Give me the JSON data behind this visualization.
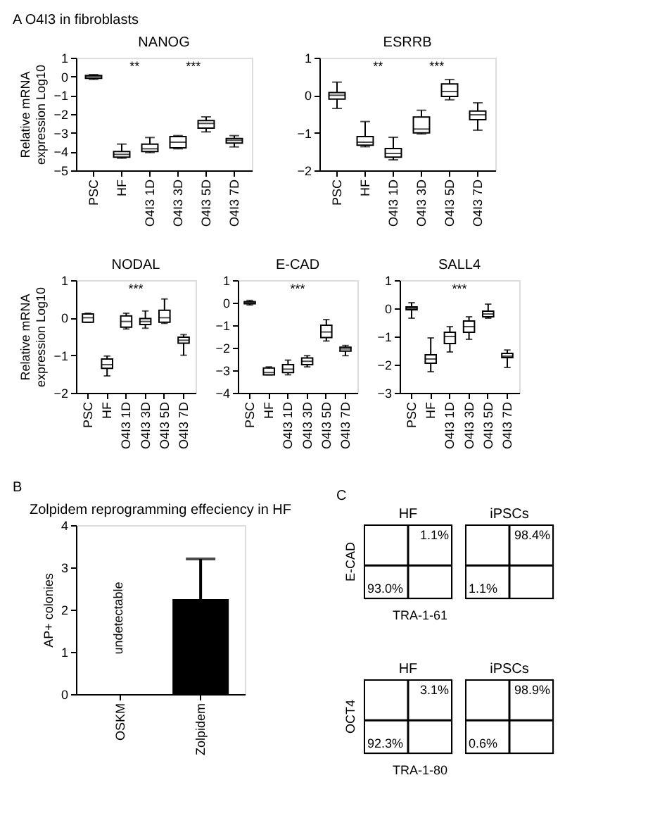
{
  "chart_data": [
    {
      "type": "box",
      "title": "NANOG",
      "ylabel": "Relative mRNA expression Log10",
      "categories": [
        "PSC",
        "HF",
        "O4I3 1D",
        "O4I3 3D",
        "O4I3 5D",
        "O4I3 7D"
      ],
      "ylim": [
        -5,
        1
      ],
      "yticks": [
        -5,
        -4,
        -3,
        -2,
        -1,
        0,
        1
      ],
      "boxes": [
        {
          "low": -0.15,
          "q1": -0.1,
          "median": 0,
          "q3": 0.05,
          "high": 0.1
        },
        {
          "low": -4.35,
          "q1": -4.3,
          "median": -4.15,
          "q3": -4.0,
          "high": -3.6
        },
        {
          "low": -4.05,
          "q1": -4.0,
          "median": -3.85,
          "q3": -3.6,
          "high": -3.25
        },
        {
          "low": -3.85,
          "q1": -3.8,
          "median": -3.5,
          "q3": -3.2,
          "high": -3.15
        },
        {
          "low": -2.95,
          "q1": -2.75,
          "median": -2.5,
          "q3": -2.35,
          "high": -2.15
        },
        {
          "low": -3.75,
          "q1": -3.55,
          "median": -3.4,
          "q3": -3.3,
          "high": -3.15
        }
      ],
      "annotations": [
        "A  O4I3 in fibroblasts",
        "**",
        "***"
      ]
    },
    {
      "type": "box",
      "title": "ESRRB",
      "categories": [
        "PSC",
        "HF",
        "O4I3 1D",
        "O4I3 3D",
        "O4I3 5D",
        "O4I3 7D"
      ],
      "ylim": [
        -2,
        1
      ],
      "yticks": [
        -2,
        -1,
        0,
        1
      ],
      "boxes": [
        {
          "low": -0.35,
          "q1": -0.1,
          "median": 0,
          "q3": 0.07,
          "high": 0.35
        },
        {
          "low": -1.37,
          "q1": -1.33,
          "median": -1.25,
          "q3": -1.1,
          "high": -0.7
        },
        {
          "low": -1.72,
          "q1": -1.65,
          "median": -1.55,
          "q3": -1.42,
          "high": -1.12
        },
        {
          "low": -1.03,
          "q1": -1.0,
          "median": -0.9,
          "q3": -0.58,
          "high": -0.4
        },
        {
          "low": -0.12,
          "q1": -0.03,
          "median": 0.1,
          "q3": 0.3,
          "high": 0.42
        },
        {
          "low": -0.93,
          "q1": -0.65,
          "median": -0.52,
          "q3": -0.42,
          "high": -0.2
        }
      ],
      "annotations": [
        "**",
        "***"
      ]
    },
    {
      "type": "box",
      "title": "NODAL",
      "ylabel": "Relative mRNA expression Log10",
      "categories": [
        "PSC",
        "HF",
        "O4I3 1D",
        "O4I3 3D",
        "O4I3 5D",
        "O4I3 7D"
      ],
      "ylim": [
        -2,
        1
      ],
      "yticks": [
        -2,
        -1,
        0,
        1
      ],
      "boxes": [
        {
          "low": -0.12,
          "q1": -0.12,
          "median": 0,
          "q3": 0.1,
          "high": 0.12
        },
        {
          "low": -1.55,
          "q1": -1.35,
          "median": -1.25,
          "q3": -1.1,
          "high": -1.02
        },
        {
          "low": -0.3,
          "q1": -0.25,
          "median": -0.1,
          "q3": 0.05,
          "high": 0.12
        },
        {
          "low": -0.28,
          "q1": -0.18,
          "median": -0.1,
          "q3": -0.02,
          "high": 0.18
        },
        {
          "low": -0.15,
          "q1": -0.12,
          "median": 0.0,
          "q3": 0.2,
          "high": 0.5
        },
        {
          "low": -1.0,
          "q1": -0.68,
          "median": -0.6,
          "q3": -0.52,
          "high": -0.45
        }
      ],
      "annotations": [
        "***"
      ]
    },
    {
      "type": "box",
      "title": "E-CAD",
      "categories": [
        "PSC",
        "HF",
        "O4I3 1D",
        "O4I3 3D",
        "O4I3 5D",
        "O4I3 7D"
      ],
      "ylim": [
        -4,
        1
      ],
      "yticks": [
        -4,
        -3,
        -2,
        -1,
        0,
        1
      ],
      "boxes": [
        {
          "low": -0.1,
          "q1": -0.05,
          "median": 0,
          "q3": 0.05,
          "high": 0.1
        },
        {
          "low": -3.2,
          "q1": -3.2,
          "median": -3.1,
          "q3": -2.9,
          "high": -2.85
        },
        {
          "low": -3.2,
          "q1": -3.1,
          "median": -2.95,
          "q3": -2.75,
          "high": -2.55
        },
        {
          "low": -2.85,
          "q1": -2.75,
          "median": -2.6,
          "q3": -2.45,
          "high": -2.35
        },
        {
          "low": -1.7,
          "q1": -1.55,
          "median": -1.3,
          "q3": -1.0,
          "high": -0.75
        },
        {
          "low": -2.35,
          "q1": -2.15,
          "median": -2.05,
          "q3": -1.98,
          "high": -1.9
        }
      ],
      "annotations": [
        "***"
      ]
    },
    {
      "type": "box",
      "title": "SALL4",
      "categories": [
        "PSC",
        "HF",
        "O4I3 1D",
        "O4I3 3D",
        "O4I3 5D",
        "O4I3 7D"
      ],
      "ylim": [
        -3,
        1
      ],
      "yticks": [
        -3,
        -2,
        -1,
        0,
        1
      ],
      "boxes": [
        {
          "low": -0.35,
          "q1": -0.05,
          "median": 0,
          "q3": 0.05,
          "high": 0.2
        },
        {
          "low": -2.25,
          "q1": -1.95,
          "median": -1.8,
          "q3": -1.65,
          "high": -1.05
        },
        {
          "low": -1.55,
          "q1": -1.25,
          "median": -1.0,
          "q3": -0.85,
          "high": -0.65
        },
        {
          "low": -1.1,
          "q1": -0.85,
          "median": -0.65,
          "q3": -0.45,
          "high": -0.3
        },
        {
          "low": -0.35,
          "q1": -0.3,
          "median": -0.2,
          "q3": -0.1,
          "high": 0.15
        },
        {
          "low": -2.1,
          "q1": -1.75,
          "median": -1.7,
          "q3": -1.6,
          "high": -1.48
        }
      ],
      "annotations": [
        "***"
      ]
    },
    {
      "type": "bar",
      "title": "Zolpidem reprogramming effeciency in HF",
      "ylabel": "AP+ colonies",
      "categories": [
        "OSKM",
        "Zolpidem"
      ],
      "values": [
        null,
        2.25
      ],
      "errors": [
        null,
        [
          2.25,
          3.2
        ]
      ],
      "color": "#000000",
      "ylim": [
        0,
        4
      ],
      "yticks": [
        0,
        1,
        2,
        3,
        4
      ],
      "annotations": [
        "B",
        "undetectable"
      ]
    },
    {
      "type": "other",
      "title": "HF",
      "xlabel": "TRA-1-61",
      "ylabel": "E-CAD",
      "annotations": [
        "C",
        "1.1%",
        "93.0%"
      ]
    },
    {
      "type": "other",
      "title": "iPSCs",
      "annotations": [
        "98.4%",
        "1.1%"
      ]
    },
    {
      "type": "other",
      "title": "HF",
      "xlabel": "TRA-1-80",
      "ylabel": "OCT4",
      "annotations": [
        "3.1%",
        "92.3%"
      ]
    },
    {
      "type": "other",
      "title": "iPSCs",
      "annotations": [
        "98.9%",
        "0.6%"
      ]
    }
  ]
}
